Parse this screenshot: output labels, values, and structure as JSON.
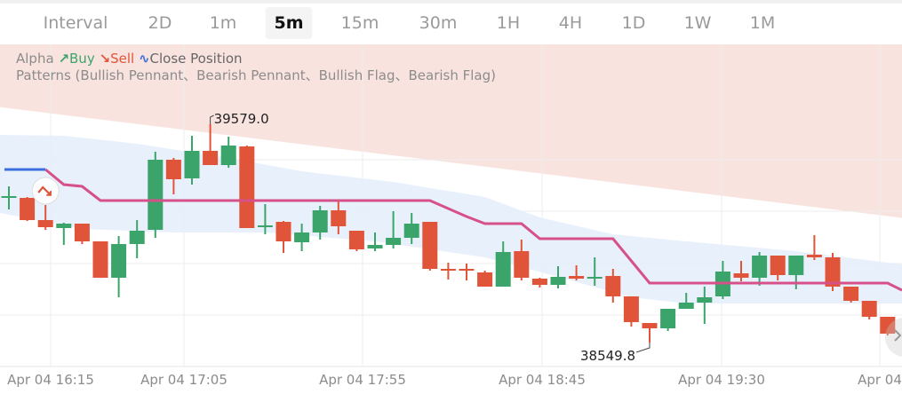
{
  "tabs": [
    {
      "label": "Interval",
      "selected": false
    },
    {
      "label": "2D",
      "selected": false
    },
    {
      "label": "1m",
      "selected": false
    },
    {
      "label": "5m",
      "selected": true
    },
    {
      "label": "15m",
      "selected": false
    },
    {
      "label": "30m",
      "selected": false
    },
    {
      "label": "1H",
      "selected": false
    },
    {
      "label": "4H",
      "selected": false
    },
    {
      "label": "1D",
      "selected": false
    },
    {
      "label": "1W",
      "selected": false
    },
    {
      "label": "1M",
      "selected": false
    }
  ],
  "legend": {
    "alpha": "Alpha",
    "buy": "Buy",
    "sell": "Sell",
    "close_position": "Close Position",
    "patterns": "Patterns (Bullish Pennant、Bearish Pennant、Bullish Flag、Bearish Flag)"
  },
  "colors": {
    "up": "#3aa46a",
    "down": "#e0543a",
    "trend": "#d6508a",
    "trend_initial": "#3b6fe0",
    "cloud": "#e6effb",
    "resistance_zone": "#f9e3df"
  },
  "icons": {
    "buy": "arrow-up-right-icon",
    "sell": "arrow-down-right-icon",
    "close": "zigzag-icon",
    "signal": "sell-signal-icon",
    "scroll": "chevron-right-icon"
  },
  "chart_data": {
    "type": "candlestick",
    "x_tick_labels": [
      "Apr 04 16:15",
      "Apr 04 17:05",
      "Apr 04 17:55",
      "Apr 04 18:45",
      "Apr 04 19:30",
      "Apr 04"
    ],
    "high_label": "39579.0",
    "low_label": "38549.8",
    "grid": true,
    "candles": [
      [
        39240.1,
        39286.1,
        39177.3,
        39240.1
      ],
      [
        39231.7,
        39235.9,
        39122.9,
        39127.1
      ],
      [
        39127.1,
        39198.3,
        39081.1,
        39093.7
      ],
      [
        39089.5,
        39114.6,
        39010.0,
        39110.4
      ],
      [
        39110.4,
        39110.4,
        39014.2,
        39026.7
      ],
      [
        39026.7,
        39026.7,
        38855.2,
        38855.2
      ],
      [
        38855.2,
        39051.8,
        38763.1,
        39014.2
      ],
      [
        39014.2,
        39127.1,
        38947.2,
        39076.9
      ],
      [
        39081.1,
        39449.3,
        39043.4,
        39411.6
      ],
      [
        39411.6,
        39420.0,
        39248.5,
        39319.6
      ],
      [
        39323.8,
        39524.6,
        39294.5,
        39453.5
      ],
      [
        39453.5,
        39579.0,
        39386.5,
        39386.5
      ],
      [
        39386.5,
        39520.4,
        39374.0,
        39478.6
      ],
      [
        39474.4,
        39478.6,
        39089.5,
        39089.5
      ],
      [
        39102.0,
        39202.4,
        39060.2,
        39102.1
      ],
      [
        39118.8,
        39122.9,
        38972.3,
        39026.7
      ],
      [
        39022.5,
        39110.4,
        38980.7,
        39068.6
      ],
      [
        39068.6,
        39194.1,
        39035.1,
        39173.2
      ],
      [
        39173.2,
        39219.2,
        39060.2,
        39097.8
      ],
      [
        39076.9,
        39076.9,
        38980.7,
        38989.1
      ],
      [
        38993.2,
        39068.6,
        38980.7,
        39010.0
      ],
      [
        39010.0,
        39169.0,
        38993.2,
        39043.4
      ],
      [
        39043.4,
        39160.6,
        39014.2,
        39110.4
      ],
      [
        39118.8,
        39118.8,
        38888.6,
        38897.0
      ],
      [
        38897.0,
        38926.3,
        38846.8,
        38895.0
      ],
      [
        38897.0,
        38922.1,
        38842.6,
        38895.0
      ],
      [
        38880.3,
        38888.6,
        38813.3,
        38813.3
      ],
      [
        38813.3,
        39026.7,
        38813.3,
        38976.5
      ],
      [
        38980.7,
        39035.1,
        38842.6,
        38855.2
      ],
      [
        38851.0,
        38855.2,
        38809.1,
        38821.7
      ],
      [
        38821.7,
        38909.6,
        38805.0,
        38859.4
      ],
      [
        38863.5,
        38913.7,
        38842.6,
        38851.0
      ],
      [
        38855.2,
        38951.4,
        38817.5,
        38859.4
      ],
      [
        38863.5,
        38897.0,
        38738.0,
        38767.3
      ],
      [
        38767.3,
        38767.3,
        38625.0,
        38646.0
      ],
      [
        38641.8,
        38641.8,
        38549.8,
        38616.7
      ],
      [
        38616.7,
        38708.7,
        38604.1,
        38708.7
      ],
      [
        38708.7,
        38784.0,
        38708.7,
        38738.0
      ],
      [
        38738.0,
        38813.3,
        38637.6,
        38763.1
      ],
      [
        38767.3,
        38934.7,
        38754.8,
        38884.5
      ],
      [
        38876.1,
        38934.7,
        38838.4,
        38855.2
      ],
      [
        38855.2,
        38976.5,
        38817.5,
        38959.8
      ],
      [
        38959.8,
        38959.8,
        38842.6,
        38867.7
      ],
      [
        38867.7,
        38959.8,
        38800.8,
        38959.8
      ],
      [
        38964.0,
        39056.0,
        38938.8,
        38951.4
      ],
      [
        38951.4,
        38972.3,
        38792.4,
        38813.3
      ],
      [
        38813.3,
        38813.3,
        38738.0,
        38746.4
      ],
      [
        38746.4,
        38746.4,
        38658.5,
        38671.1
      ],
      [
        38671.1,
        38671.1,
        38583.2,
        38591.6
      ]
    ],
    "trend_line_initial": [
      [
        0,
        39365.6
      ],
      [
        2,
        39365.6
      ]
    ],
    "trend_line": [
      [
        2,
        39365.6
      ],
      [
        3,
        39294.5
      ],
      [
        4,
        39286.1
      ],
      [
        5,
        39219.2
      ],
      [
        23,
        39219.2
      ],
      [
        24,
        39181.5
      ],
      [
        25,
        39143.9
      ],
      [
        26,
        39110.4
      ],
      [
        28,
        39110.4
      ],
      [
        29,
        39039.3
      ],
      [
        33,
        39039.3
      ],
      [
        34,
        38934.7
      ],
      [
        35,
        38830.1
      ],
      [
        48,
        38830.1
      ],
      [
        49,
        38796.6
      ]
    ],
    "cloud_upper": [
      [
        0,
        39528.8
      ],
      [
        3,
        39524.6
      ],
      [
        7,
        39487.0
      ],
      [
        12,
        39420.0
      ],
      [
        16,
        39357.2
      ],
      [
        21,
        39307.0
      ],
      [
        26,
        39235.9
      ],
      [
        29,
        39139.7
      ],
      [
        33,
        39060.2
      ],
      [
        37,
        39026.7
      ],
      [
        43,
        38980.7
      ],
      [
        49,
        38917.9
      ]
    ],
    "cloud_lower": [
      [
        0,
        39160.6
      ],
      [
        4,
        39085.3
      ],
      [
        9,
        39068.6
      ],
      [
        14,
        39068.6
      ],
      [
        20,
        39026.7
      ],
      [
        26,
        38951.4
      ],
      [
        30,
        38859.4
      ],
      [
        34,
        38763.1
      ],
      [
        37,
        38733.8
      ],
      [
        49,
        38733.8
      ]
    ],
    "resistance_line": [
      [
        0,
        39654.3
      ],
      [
        49,
        39135.5
      ]
    ],
    "sell_signal_index": 2
  }
}
